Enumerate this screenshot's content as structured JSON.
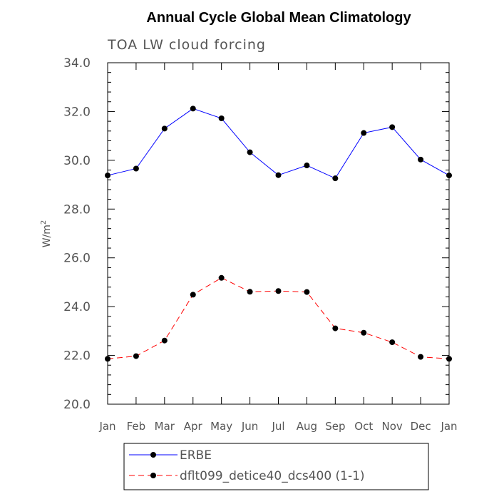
{
  "chart_data": {
    "type": "line",
    "title": "Annual Cycle Global Mean Climatology",
    "subtitle": "TOA LW cloud forcing",
    "ylabel_base": "W/m",
    "ylabel_sup": "2",
    "xlabel": "",
    "categories": [
      "Jan",
      "Feb",
      "Mar",
      "Apr",
      "May",
      "Jun",
      "Jul",
      "Aug",
      "Sep",
      "Oct",
      "Nov",
      "Dec",
      "Jan"
    ],
    "ylim": [
      20.0,
      34.0
    ],
    "yticks": [
      "20.0",
      "22.0",
      "24.0",
      "26.0",
      "28.0",
      "30.0",
      "32.0",
      "34.0"
    ],
    "series": [
      {
        "name": "ERBE",
        "color": "#0000ff",
        "dash": "solid",
        "values": [
          29.38,
          29.66,
          31.3,
          32.12,
          31.72,
          30.33,
          29.39,
          29.79,
          29.26,
          31.12,
          31.36,
          30.03,
          29.38
        ]
      },
      {
        "name": "dflt099_detice40_dcs400 (1-1)",
        "color": "#ff0000",
        "dash": "dashed",
        "values": [
          21.86,
          21.97,
          22.61,
          24.49,
          25.18,
          24.61,
          24.64,
          24.6,
          23.11,
          22.93,
          22.54,
          21.94,
          21.86
        ]
      }
    ],
    "legend_position": "bottom-center"
  }
}
